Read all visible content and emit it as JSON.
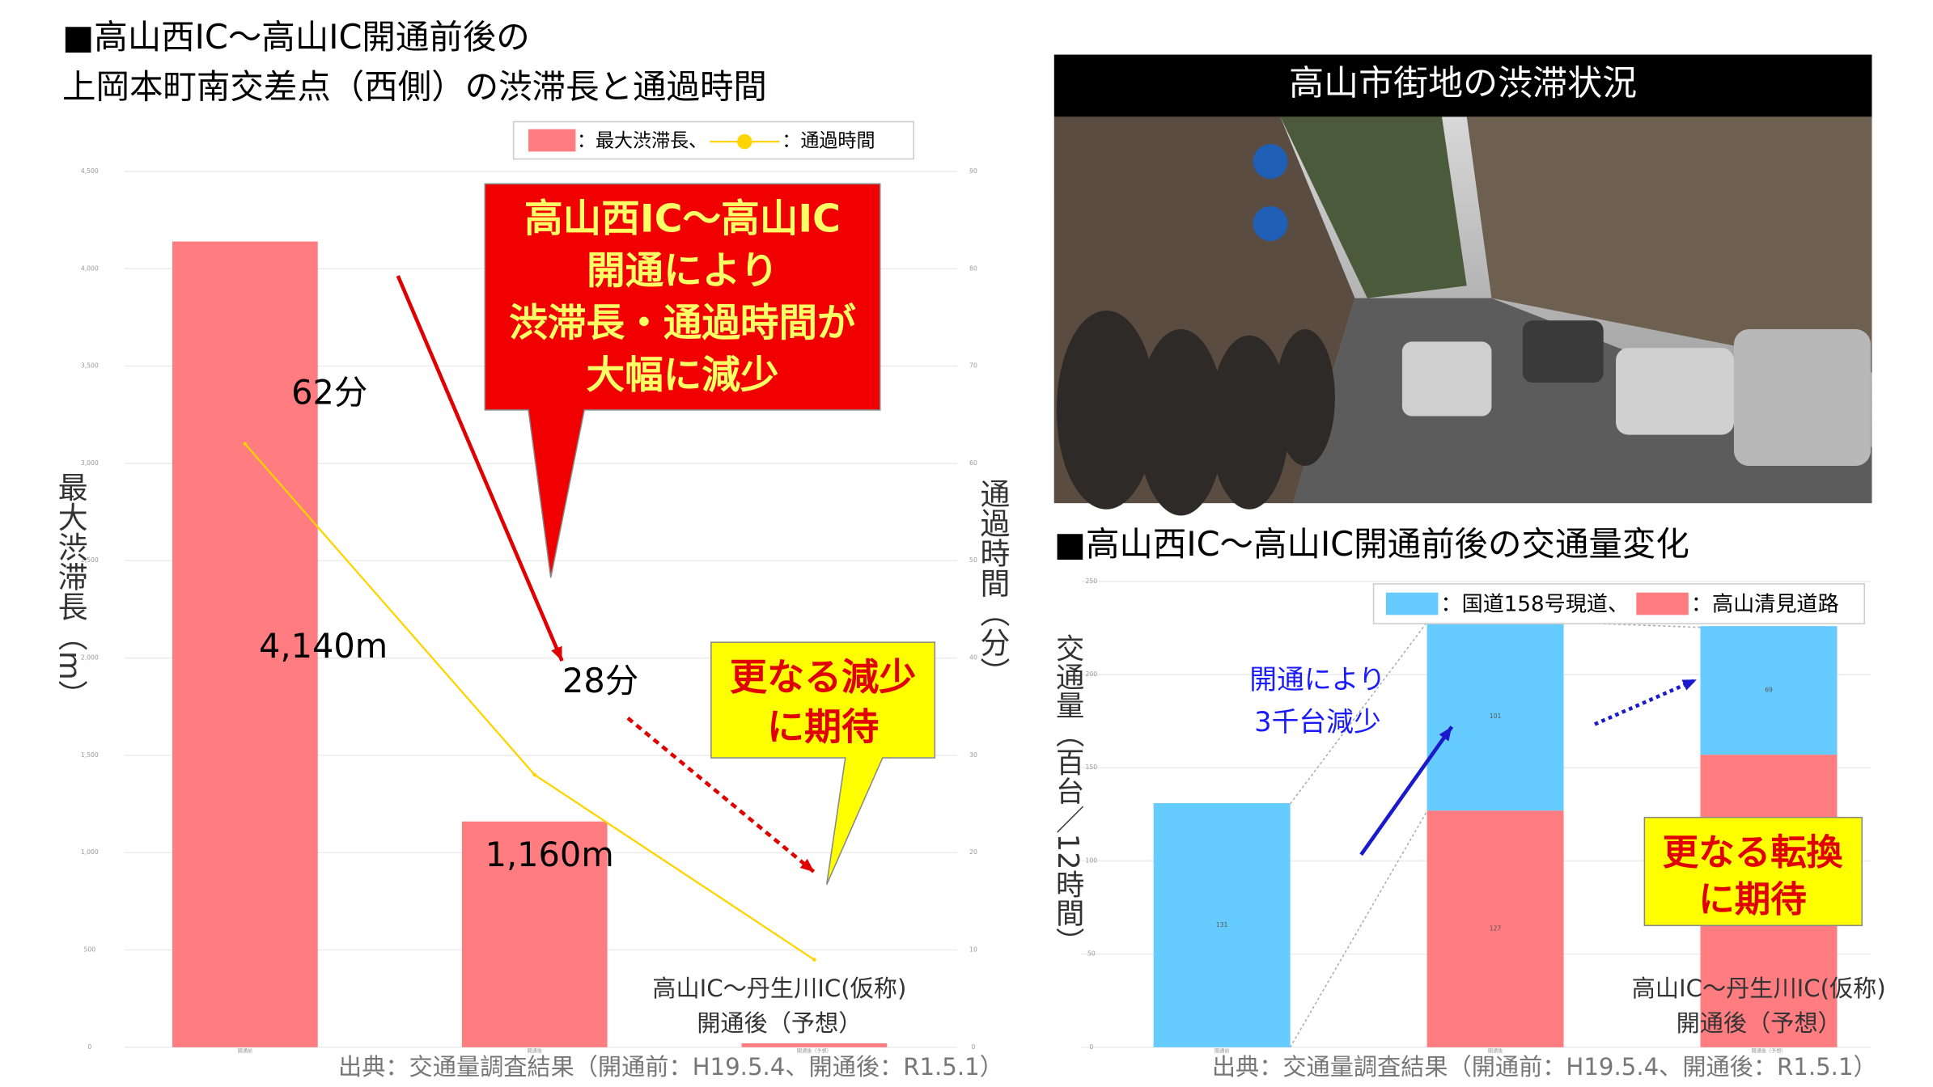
{
  "chart_data": [
    {
      "type": "combo",
      "title": [
        "■高山西IC～高山IC開通前後の",
        "上岡本町南交差点（西側）の渋滞長と通過時間"
      ],
      "categories": [
        "開通前",
        "開通後",
        "開通後（予想）"
      ],
      "ylabel": "最大渋滞長（m）",
      "y2label": "通過時間（分）",
      "ylim": [
        0,
        4500
      ],
      "yticks": [
        0,
        500,
        {
          "value": 1000,
          "label": "1,000"
        },
        {
          "value": 1500,
          "label": "1,500"
        },
        {
          "value": 2000,
          "label": "2,000"
        },
        {
          "value": 2500,
          "label": "2,500"
        },
        {
          "value": 3000,
          "label": "3,000"
        },
        {
          "value": 3500,
          "label": "3,500"
        },
        {
          "value": 4000,
          "label": "4,000"
        },
        {
          "value": 4500,
          "label": "4,500"
        }
      ],
      "y2lim": [
        0,
        90
      ],
      "y2ticks": [
        0,
        10,
        20,
        30,
        40,
        50,
        60,
        70,
        80,
        90
      ],
      "grid": true,
      "series": [
        {
          "name": "：最大渋滞長、",
          "color": "#ff7c80",
          "values": [
            4140,
            1160,
            20
          ],
          "value_labels": [
            "4,140m",
            "1,160m",
            null
          ]
        },
        {
          "name": "：通過時間",
          "type": "line",
          "axis": "y2",
          "color": "#ffd400",
          "values": [
            62,
            28,
            9
          ],
          "value_labels": [
            "62分",
            "28分",
            null
          ]
        }
      ],
      "annotations": {
        "callout": [
          "高山西IC～高山IC",
          "開通により",
          "渋滞長・通過時間が",
          "大幅に減少"
        ],
        "hope": [
          "更なる減少",
          "に期待"
        ],
        "note": [
          "高山IC～丹生川IC(仮称)",
          "開通後（予想）"
        ]
      },
      "source": "出典：交通量調査結果（開通前：H19.5.4、開通後：R1.5.1）"
    },
    {
      "type": "stacked_bar",
      "title": "■高山西IC～高山IC開通前後の交通量変化",
      "categories": [
        "開通前",
        "開通後",
        "開通後（予想）"
      ],
      "ylabel": "交通量（百台／12時間）",
      "ylim": [
        0,
        250
      ],
      "yticks": [
        0,
        50,
        100,
        150,
        200,
        250
      ],
      "series": [
        {
          "name": "：国道158号現道、",
          "color": "#66ccff",
          "values": [
            131,
            101,
            69
          ]
        },
        {
          "name": "：高山清見道路",
          "color": "#ff7c80",
          "values": [
            0,
            127,
            157
          ]
        }
      ],
      "annotations": {
        "text": [
          "開通により",
          "3千台減少"
        ],
        "hope": [
          "更なる転換",
          "に期待"
        ],
        "note": [
          "高山IC～丹生川IC(仮称)",
          "開通後（予想）"
        ]
      },
      "source": "出典：交通量調査結果（開通前：H19.5.4、開通後：R1.5.1）"
    }
  ],
  "photo": {
    "title": "高山市街地の渋滞状況"
  }
}
